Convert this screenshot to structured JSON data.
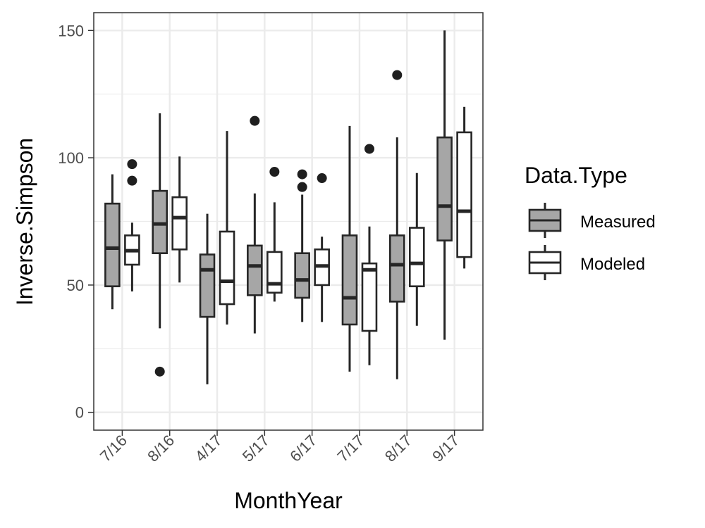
{
  "chart_data": {
    "type": "boxplot",
    "xlabel": "MonthYear",
    "ylabel": "Inverse.Simpson",
    "ylim": [
      -7,
      157
    ],
    "yticks": [
      0,
      50,
      100,
      150
    ],
    "grid": true,
    "legend_position": "right",
    "legend_title": "Data.Type",
    "categories": [
      "7/16",
      "8/16",
      "4/17",
      "5/17",
      "6/17",
      "7/17",
      "8/17",
      "9/17"
    ],
    "series": [
      {
        "name": "Measured",
        "color": "#a6a6a6",
        "boxes": [
          {
            "whisker_low": 40.5,
            "q1": 49.5,
            "median": 64.5,
            "q3": 82,
            "whisker_high": 93.5,
            "outliers": []
          },
          {
            "whisker_low": 33,
            "q1": 62.5,
            "median": 74,
            "q3": 87,
            "whisker_high": 117.5,
            "outliers": [
              16
            ]
          },
          {
            "whisker_low": 11,
            "q1": 37.5,
            "median": 56,
            "q3": 62,
            "whisker_high": 78,
            "outliers": []
          },
          {
            "whisker_low": 31,
            "q1": 46,
            "median": 57.5,
            "q3": 65.5,
            "whisker_high": 86,
            "outliers": [
              114.5
            ]
          },
          {
            "whisker_low": 35.5,
            "q1": 45,
            "median": 52,
            "q3": 62.5,
            "whisker_high": 85.5,
            "outliers": [
              88.5,
              93.5
            ]
          },
          {
            "whisker_low": 16,
            "q1": 34.5,
            "median": 45,
            "q3": 69.5,
            "whisker_high": 112.5,
            "outliers": []
          },
          {
            "whisker_low": 13,
            "q1": 43.5,
            "median": 58,
            "q3": 69.5,
            "whisker_high": 108,
            "outliers": [
              132.5
            ]
          },
          {
            "whisker_low": 28.5,
            "q1": 67.5,
            "median": 81,
            "q3": 108,
            "whisker_high": 150,
            "outliers": []
          }
        ]
      },
      {
        "name": "Modeled",
        "color": "#ffffff",
        "boxes": [
          {
            "whisker_low": 47.5,
            "q1": 58,
            "median": 63.5,
            "q3": 69.5,
            "whisker_high": 74.5,
            "outliers": [
              91,
              97.5
            ]
          },
          {
            "whisker_low": 51,
            "q1": 64,
            "median": 76.5,
            "q3": 84.5,
            "whisker_high": 100.5,
            "outliers": []
          },
          {
            "whisker_low": 34.5,
            "q1": 42.5,
            "median": 51.5,
            "q3": 71,
            "whisker_high": 110.5,
            "outliers": []
          },
          {
            "whisker_low": 43.5,
            "q1": 47,
            "median": 50.5,
            "q3": 63,
            "whisker_high": 82.5,
            "outliers": [
              94.5
            ]
          },
          {
            "whisker_low": 35.5,
            "q1": 50,
            "median": 57.5,
            "q3": 64,
            "whisker_high": 69,
            "outliers": [
              92
            ]
          },
          {
            "whisker_low": 18.5,
            "q1": 32,
            "median": 56,
            "q3": 58.5,
            "whisker_high": 73,
            "outliers": [
              103.5
            ]
          },
          {
            "whisker_low": 34,
            "q1": 49.5,
            "median": 58.5,
            "q3": 72.5,
            "whisker_high": 94,
            "outliers": []
          },
          {
            "whisker_low": 56.5,
            "q1": 61,
            "median": 79,
            "q3": 110,
            "whisker_high": 120,
            "outliers": []
          }
        ]
      }
    ]
  },
  "style": {
    "panel_border_color": "#333333",
    "grid_color": "#ebebeb",
    "box_line_color": "#262626",
    "outlier_color": "#1f1f1f"
  }
}
